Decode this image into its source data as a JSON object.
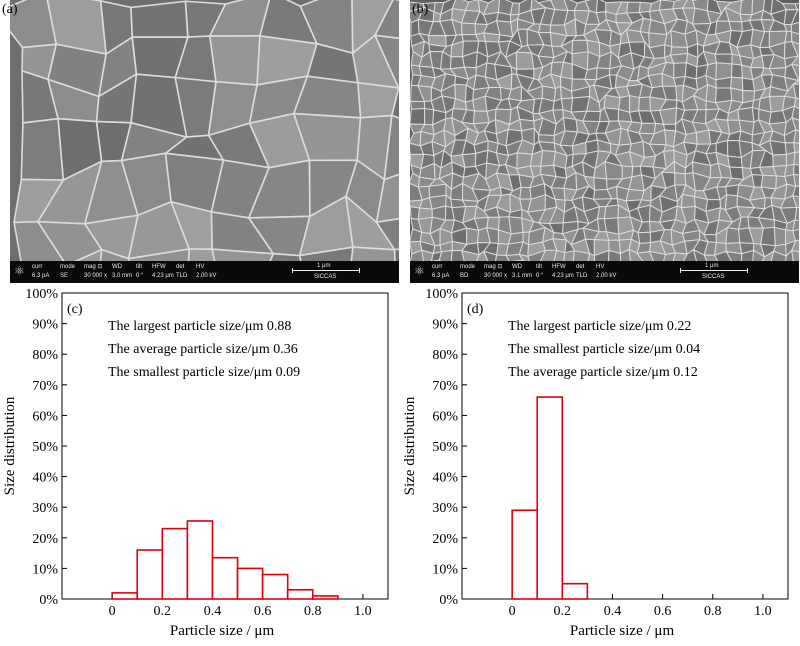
{
  "panels": {
    "a": {
      "letter": "(a)",
      "sem": {
        "labels": [
          "curr",
          "mode",
          "mag ⊡",
          "WD",
          "tilt",
          "HFW",
          "det",
          "HV"
        ],
        "values": [
          "6.3 pA",
          "SE",
          "30 000 x",
          "3.0 mm",
          "0 °",
          "4.23 μm",
          "TLD",
          "2.00 kV"
        ],
        "scale": "1 μm",
        "org": "SICCAS"
      }
    },
    "b": {
      "letter": "(b)",
      "sem": {
        "labels": [
          "curr",
          "mode",
          "mag ⊡",
          "WD",
          "tilt",
          "HFW",
          "det",
          "HV"
        ],
        "values": [
          "6.3 pA",
          "BD",
          "30 000 x",
          "3.1 mm",
          "0 °",
          "4.23 μm",
          "TLD",
          "2.00 kV"
        ],
        "scale": "1 μm",
        "org": "SICCAS"
      }
    }
  },
  "chart_data": [
    {
      "panel": "(c)",
      "type": "bar",
      "bin_edges": [
        -0.0,
        0.1,
        0.2,
        0.3,
        0.4,
        0.5,
        0.6,
        0.7,
        0.8,
        0.9
      ],
      "values": [
        2,
        16,
        23,
        25.5,
        13.5,
        10,
        8,
        3,
        1
      ],
      "xlabel": "Particle size / μm",
      "ylabel": "Size distribution",
      "xlim": [
        -0.2,
        1.1
      ],
      "ylim": [
        0,
        100
      ],
      "xticks": [
        "0",
        "0.2",
        "0.4",
        "0.6",
        "0.8",
        "1.0"
      ],
      "yticks": [
        "0%",
        "10%",
        "20%",
        "30%",
        "40%",
        "50%",
        "60%",
        "70%",
        "80%",
        "90%",
        "100%"
      ],
      "bar_color": "#e0000f",
      "annotations": [
        "The largest particle size/μm 0.88",
        "The average particle size/μm 0.36",
        "The smallest particle size/μm 0.09"
      ]
    },
    {
      "panel": "(d)",
      "type": "bar",
      "bin_edges": [
        0.0,
        0.1,
        0.2,
        0.3
      ],
      "values": [
        29,
        66,
        5
      ],
      "xlabel": "Particle size / μm",
      "ylabel": "Size distribution",
      "xlim": [
        -0.2,
        1.1
      ],
      "ylim": [
        0,
        100
      ],
      "xticks": [
        "0",
        "0.2",
        "0.4",
        "0.6",
        "0.8",
        "1.0"
      ],
      "yticks": [
        "0%",
        "10%",
        "20%",
        "30%",
        "40%",
        "50%",
        "60%",
        "70%",
        "80%",
        "90%",
        "100%"
      ],
      "bar_color": "#e0000f",
      "annotations": [
        "The largest particle size/μm 0.22",
        "The smallest particle size/μm 0.04",
        "The average particle size/μm 0.12"
      ]
    }
  ]
}
